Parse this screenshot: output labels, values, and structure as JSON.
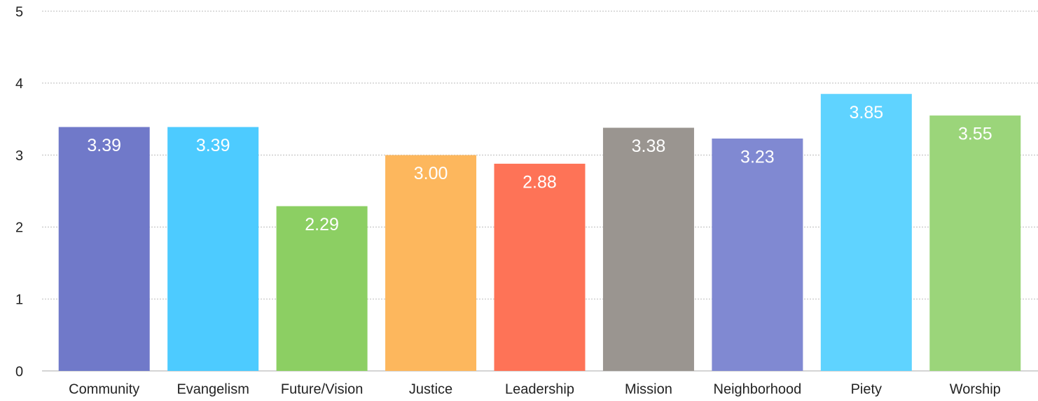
{
  "chart_data": {
    "type": "bar",
    "categories": [
      "Community",
      "Evangelism",
      "Future/Vision",
      "Justice",
      "Leadership",
      "Mission",
      "Neighborhood",
      "Piety",
      "Worship"
    ],
    "values": [
      3.39,
      3.39,
      2.29,
      3.0,
      2.88,
      3.38,
      3.23,
      3.85,
      3.55
    ],
    "value_labels": [
      "3.39",
      "3.39",
      "2.29",
      "3.00",
      "2.88",
      "3.38",
      "3.23",
      "3.85",
      "3.55"
    ],
    "colors": [
      "#7079c9",
      "#4dcbff",
      "#8ccf63",
      "#fdb75d",
      "#fe7357",
      "#9a9590",
      "#8089d2",
      "#5fd3ff",
      "#9bd57a"
    ],
    "ylim": [
      0,
      5
    ],
    "yticks": [
      0,
      1,
      2,
      3,
      4,
      5
    ],
    "grid": true
  }
}
